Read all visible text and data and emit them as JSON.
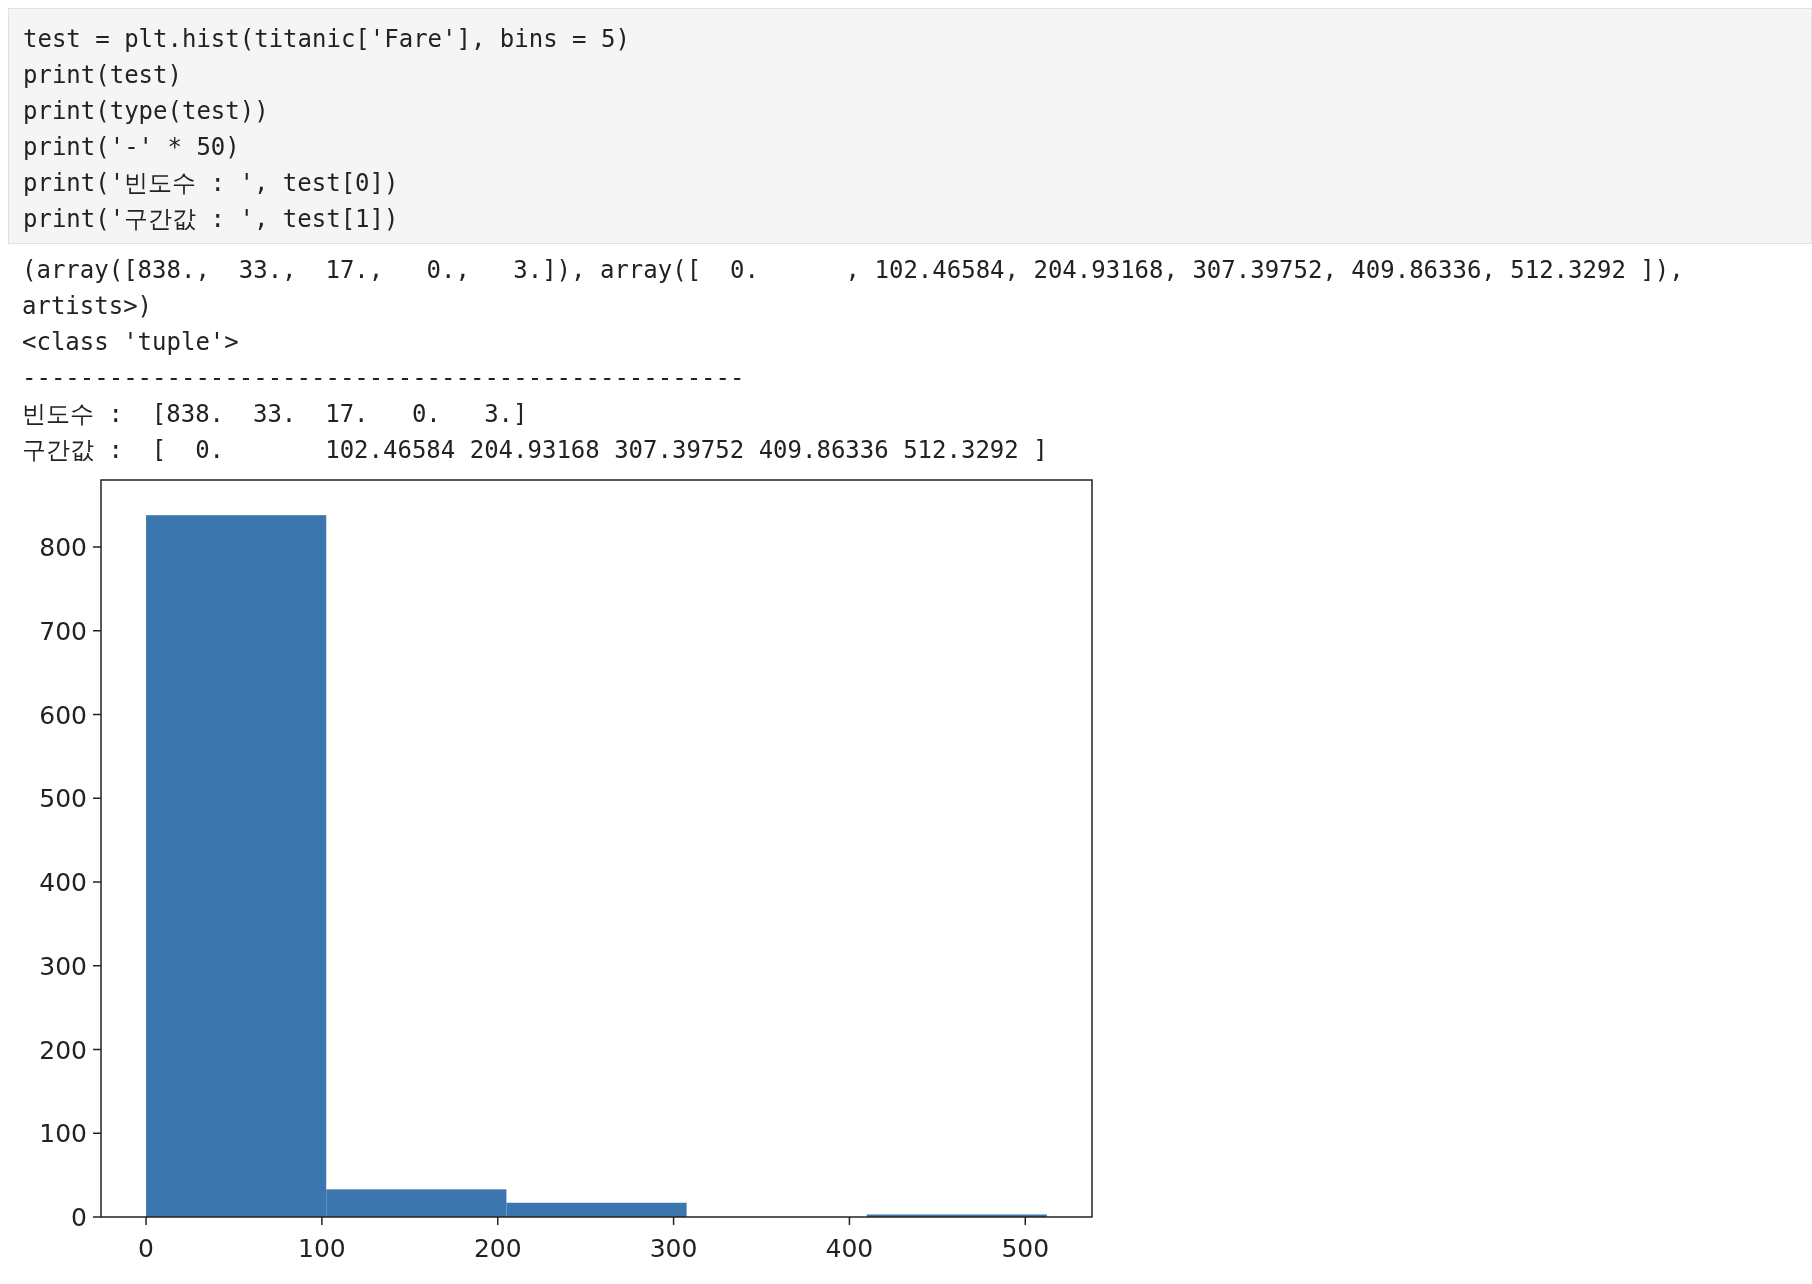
{
  "chart_data": {
    "type": "histogram",
    "title": "test = plt.hist(titanic['Fare'], bins = 5)\nprint(test)\nprint(type(test))\nprint('-' * 50)\nprint('빈도수 : ', test[0])\nprint('구간값 : ', test[1])",
    "subtitle": "(array([838.,  33.,  17.,   0.,   3.]), array([  0.      , 102.46584, 204.93168, 307.39752, 409.86336, 512.3292 ]),\nartists>)\n<class 'tuple'>\n--------------------------------------------------\n빈도수 :  [838.  33.  17.   0.   3.]\n구간값 :  [  0.       102.46584 204.93168 307.39752 409.86336 512.3292 ]",
    "bins": [
      0,
      102.46584,
      204.93168,
      307.39752,
      409.86336,
      512.3292
    ],
    "values": [
      838,
      33,
      17,
      0,
      3
    ],
    "color": "#3b76af",
    "xlim": [
      -25.62,
      537.95
    ],
    "ylim": [
      0,
      880
    ],
    "xticks": [
      0,
      100,
      200,
      300,
      400,
      500
    ],
    "yticks": [
      0,
      100,
      200,
      300,
      400,
      500,
      600,
      700,
      800
    ]
  }
}
